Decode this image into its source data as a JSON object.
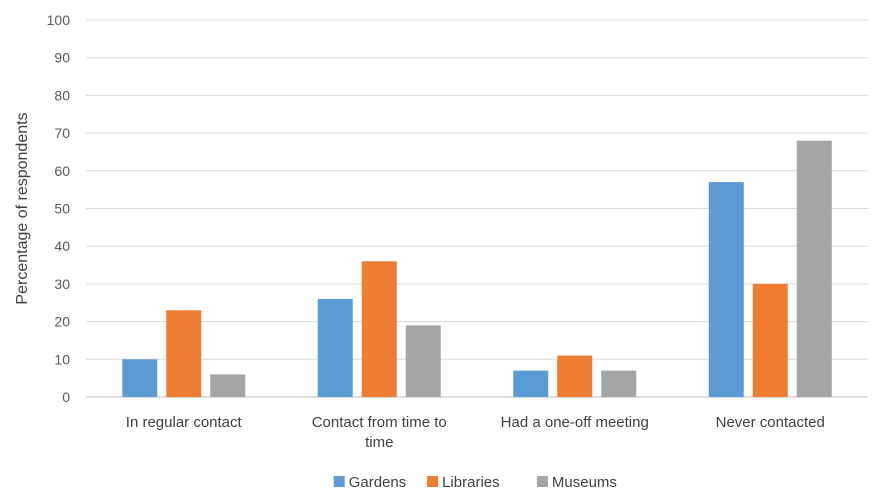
{
  "chart_data": {
    "type": "bar",
    "ylabel": "Percentage of respondents",
    "ylim": [
      0,
      100
    ],
    "ytick_step": 10,
    "grid": true,
    "legend_position": "bottom",
    "categories": [
      [
        "In regular contact"
      ],
      [
        "Contact from time to",
        "time"
      ],
      [
        "Had a one-off meeting"
      ],
      [
        "Never contacted"
      ]
    ],
    "series": [
      {
        "name": "Gardens",
        "color": "#5B9BD5",
        "values": [
          10,
          26,
          7,
          57
        ]
      },
      {
        "name": "Libraries",
        "color": "#ED7D31",
        "values": [
          23,
          36,
          11,
          30
        ]
      },
      {
        "name": "Museums",
        "color": "#A5A5A5",
        "values": [
          6,
          19,
          7,
          68
        ]
      }
    ]
  }
}
